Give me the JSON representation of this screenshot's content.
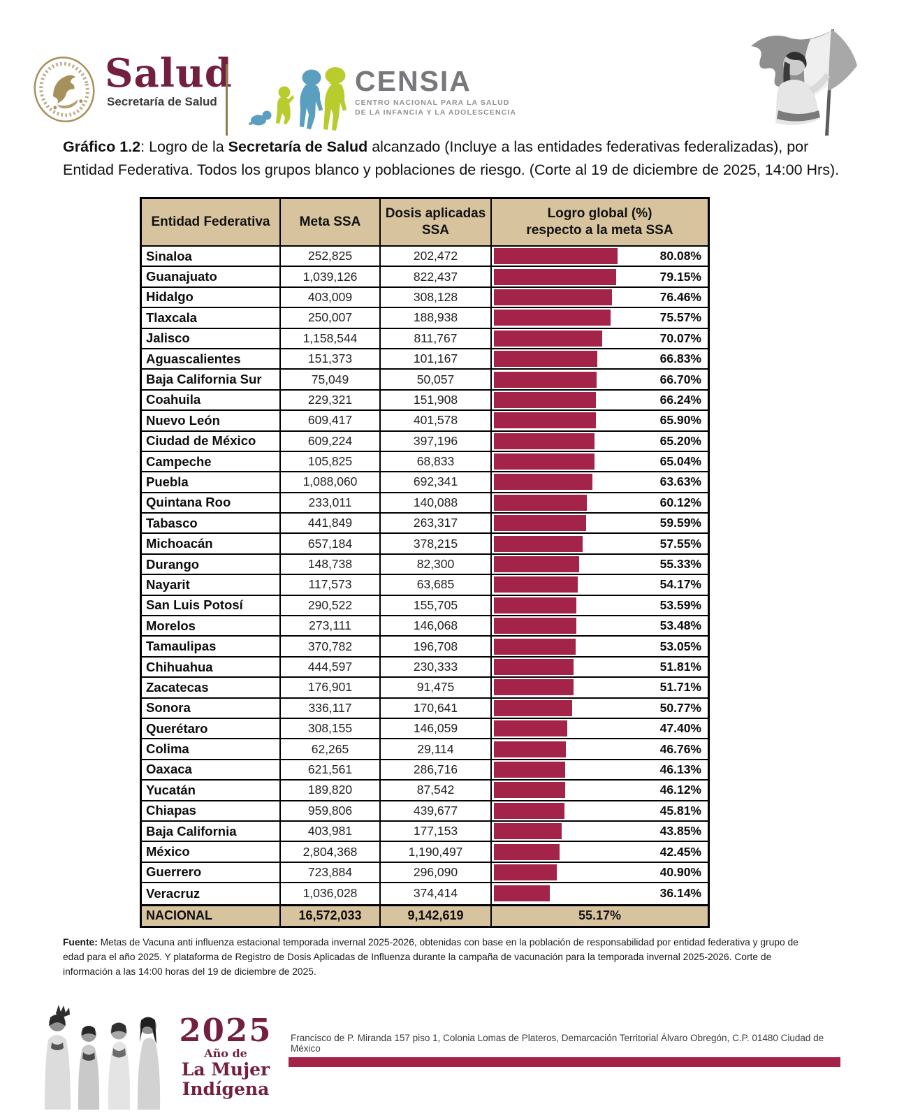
{
  "colors": {
    "maroon_logo": "#731f3f",
    "bar_crimson": "#a32349",
    "header_tan": "#d7c49e",
    "censia_gray": "#77787b",
    "censia_blue": "#5b9fc0",
    "censia_lime": "#b8cc2e",
    "seal_gold": "#a6905c"
  },
  "header": {
    "salud": {
      "wordmark": "Salud",
      "subtitle": "Secretaría de Salud"
    },
    "censia": {
      "wordmark": "CENSIA",
      "subtitle": "CENTRO NACIONAL PARA LA SALUD\nDE LA INFANCIA Y LA ADOLESCENCIA"
    }
  },
  "title": {
    "parts": [
      {
        "text": "Gráfico 1.2",
        "bold": true
      },
      {
        "text": ": Logro de la ",
        "bold": false
      },
      {
        "text": "Secretaría de Salud",
        "bold": true
      },
      {
        "text": " alcanzado (Incluye a las entidades federativas federalizadas), por Entidad Federativa. Todos los grupos blanco y poblaciones de riesgo. (Corte al 19 de diciembre de 2025, 14:00 Hrs).",
        "bold": false
      }
    ]
  },
  "table": {
    "columns": [
      "Entidad Federativa",
      "Meta SSA",
      "Dosis aplicadas\nSSA",
      "Logro global (%)\nrespecto a la meta SSA"
    ],
    "rows": [
      {
        "name": "Sinaloa",
        "meta": "252,825",
        "dosis": "202,472",
        "pct": 80.08,
        "pct_label": "80.08%"
      },
      {
        "name": "Guanajuato",
        "meta": "1,039,126",
        "dosis": "822,437",
        "pct": 79.15,
        "pct_label": "79.15%"
      },
      {
        "name": "Hidalgo",
        "meta": "403,009",
        "dosis": "308,128",
        "pct": 76.46,
        "pct_label": "76.46%"
      },
      {
        "name": "Tlaxcala",
        "meta": "250,007",
        "dosis": "188,938",
        "pct": 75.57,
        "pct_label": "75.57%"
      },
      {
        "name": "Jalisco",
        "meta": "1,158,544",
        "dosis": "811,767",
        "pct": 70.07,
        "pct_label": "70.07%"
      },
      {
        "name": "Aguascalientes",
        "meta": "151,373",
        "dosis": "101,167",
        "pct": 66.83,
        "pct_label": "66.83%"
      },
      {
        "name": "Baja California Sur",
        "meta": "75,049",
        "dosis": "50,057",
        "pct": 66.7,
        "pct_label": "66.70%"
      },
      {
        "name": "Coahuila",
        "meta": "229,321",
        "dosis": "151,908",
        "pct": 66.24,
        "pct_label": "66.24%"
      },
      {
        "name": "Nuevo León",
        "meta": "609,417",
        "dosis": "401,578",
        "pct": 65.9,
        "pct_label": "65.90%"
      },
      {
        "name": "Ciudad de México",
        "meta": "609,224",
        "dosis": "397,196",
        "pct": 65.2,
        "pct_label": "65.20%"
      },
      {
        "name": "Campeche",
        "meta": "105,825",
        "dosis": "68,833",
        "pct": 65.04,
        "pct_label": "65.04%"
      },
      {
        "name": "Puebla",
        "meta": "1,088,060",
        "dosis": "692,341",
        "pct": 63.63,
        "pct_label": "63.63%"
      },
      {
        "name": "Quintana Roo",
        "meta": "233,011",
        "dosis": "140,088",
        "pct": 60.12,
        "pct_label": "60.12%"
      },
      {
        "name": "Tabasco",
        "meta": "441,849",
        "dosis": "263,317",
        "pct": 59.59,
        "pct_label": "59.59%"
      },
      {
        "name": "Michoacán",
        "meta": "657,184",
        "dosis": "378,215",
        "pct": 57.55,
        "pct_label": "57.55%"
      },
      {
        "name": "Durango",
        "meta": "148,738",
        "dosis": "82,300",
        "pct": 55.33,
        "pct_label": "55.33%"
      },
      {
        "name": "Nayarit",
        "meta": "117,573",
        "dosis": "63,685",
        "pct": 54.17,
        "pct_label": "54.17%"
      },
      {
        "name": "San Luis Potosí",
        "meta": "290,522",
        "dosis": "155,705",
        "pct": 53.59,
        "pct_label": "53.59%"
      },
      {
        "name": "Morelos",
        "meta": "273,111",
        "dosis": "146,068",
        "pct": 53.48,
        "pct_label": "53.48%"
      },
      {
        "name": "Tamaulipas",
        "meta": "370,782",
        "dosis": "196,708",
        "pct": 53.05,
        "pct_label": "53.05%"
      },
      {
        "name": "Chihuahua",
        "meta": "444,597",
        "dosis": "230,333",
        "pct": 51.81,
        "pct_label": "51.81%"
      },
      {
        "name": "Zacatecas",
        "meta": "176,901",
        "dosis": "91,475",
        "pct": 51.71,
        "pct_label": "51.71%"
      },
      {
        "name": "Sonora",
        "meta": "336,117",
        "dosis": "170,641",
        "pct": 50.77,
        "pct_label": "50.77%"
      },
      {
        "name": "Querétaro",
        "meta": "308,155",
        "dosis": "146,059",
        "pct": 47.4,
        "pct_label": "47.40%"
      },
      {
        "name": "Colima",
        "meta": "62,265",
        "dosis": "29,114",
        "pct": 46.76,
        "pct_label": "46.76%"
      },
      {
        "name": "Oaxaca",
        "meta": "621,561",
        "dosis": "286,716",
        "pct": 46.13,
        "pct_label": "46.13%"
      },
      {
        "name": "Yucatán",
        "meta": "189,820",
        "dosis": "87,542",
        "pct": 46.12,
        "pct_label": "46.12%"
      },
      {
        "name": "Chiapas",
        "meta": "959,806",
        "dosis": "439,677",
        "pct": 45.81,
        "pct_label": "45.81%"
      },
      {
        "name": "Baja California",
        "meta": "403,981",
        "dosis": "177,153",
        "pct": 43.85,
        "pct_label": "43.85%"
      },
      {
        "name": "México",
        "meta": "2,804,368",
        "dosis": "1,190,497",
        "pct": 42.45,
        "pct_label": "42.45%"
      },
      {
        "name": "Guerrero",
        "meta": "723,884",
        "dosis": "296,090",
        "pct": 40.9,
        "pct_label": "40.90%"
      },
      {
        "name": "Veracruz",
        "meta": "1,036,028",
        "dosis": "374,414",
        "pct": 36.14,
        "pct_label": "36.14%"
      }
    ],
    "national": {
      "name": "NACIONAL",
      "meta": "16,572,033",
      "dosis": "9,142,619",
      "pct_label": "55.17%"
    }
  },
  "chart_data": {
    "type": "bar",
    "title": "Gráfico 1.2: Logro de la Secretaría de Salud alcanzado (Incluye a las entidades federativas federalizadas), por Entidad Federativa. Todos los grupos blanco y poblaciones de riesgo. (Corte al 19 de diciembre de 2025, 14:00 Hrs).",
    "orientation": "horizontal",
    "categories": [
      "Sinaloa",
      "Guanajuato",
      "Hidalgo",
      "Tlaxcala",
      "Jalisco",
      "Aguascalientes",
      "Baja California Sur",
      "Coahuila",
      "Nuevo León",
      "Ciudad de México",
      "Campeche",
      "Puebla",
      "Quintana Roo",
      "Tabasco",
      "Michoacán",
      "Durango",
      "Nayarit",
      "San Luis Potosí",
      "Morelos",
      "Tamaulipas",
      "Chihuahua",
      "Zacatecas",
      "Sonora",
      "Querétaro",
      "Colima",
      "Oaxaca",
      "Yucatán",
      "Chiapas",
      "Baja California",
      "México",
      "Guerrero",
      "Veracruz"
    ],
    "series": [
      {
        "name": "Meta SSA",
        "values": [
          252825,
          1039126,
          403009,
          250007,
          1158544,
          151373,
          75049,
          229321,
          609417,
          609224,
          105825,
          1088060,
          233011,
          441849,
          657184,
          148738,
          117573,
          290522,
          273111,
          370782,
          444597,
          176901,
          336117,
          308155,
          62265,
          621561,
          189820,
          959806,
          403981,
          2804368,
          723884,
          1036028
        ]
      },
      {
        "name": "Dosis aplicadas SSA",
        "values": [
          202472,
          822437,
          308128,
          188938,
          811767,
          101167,
          50057,
          151908,
          401578,
          397196,
          68833,
          692341,
          140088,
          263317,
          378215,
          82300,
          63685,
          155705,
          146068,
          196708,
          230333,
          91475,
          170641,
          146059,
          29114,
          286716,
          87542,
          439677,
          177153,
          1190497,
          296090,
          374414
        ]
      },
      {
        "name": "Logro global (%) respecto a la meta SSA",
        "values": [
          80.08,
          79.15,
          76.46,
          75.57,
          70.07,
          66.83,
          66.7,
          66.24,
          65.9,
          65.2,
          65.04,
          63.63,
          60.12,
          59.59,
          57.55,
          55.33,
          54.17,
          53.59,
          53.48,
          53.05,
          51.81,
          51.71,
          50.77,
          47.4,
          46.76,
          46.13,
          46.12,
          45.81,
          43.85,
          42.45,
          40.9,
          36.14
        ]
      }
    ],
    "totals": {
      "name": "NACIONAL",
      "meta": 16572033,
      "dosis": 9142619,
      "logro_pct": 55.17
    },
    "xlim": [
      0,
      100
    ],
    "bar_color": "#a32349",
    "legend": "none",
    "grid": false
  },
  "footnote": {
    "label": "Fuente:",
    "text": " Metas de Vacuna anti influenza estacional temporada invernal 2025-2026, obtenidas con base en la población de responsabilidad por entidad federativa y grupo de edad para el año 2025. Y plataforma de Registro de Dosis Aplicadas de Influenza durante la campaña de vacunación para la temporada invernal 2025-2026. Corte de información a las 14:00 horas del 19 de diciembre de 2025."
  },
  "footer": {
    "year": "2025",
    "year_sub1": "Año de",
    "year_sub2": "La Mujer",
    "year_sub3": "Indígena",
    "address": "Francisco de P. Miranda 157 piso 1, Colonia Lomas de Plateros, Demarcación Territorial Álvaro Obregón, C.P. 01480 Ciudad de México"
  }
}
